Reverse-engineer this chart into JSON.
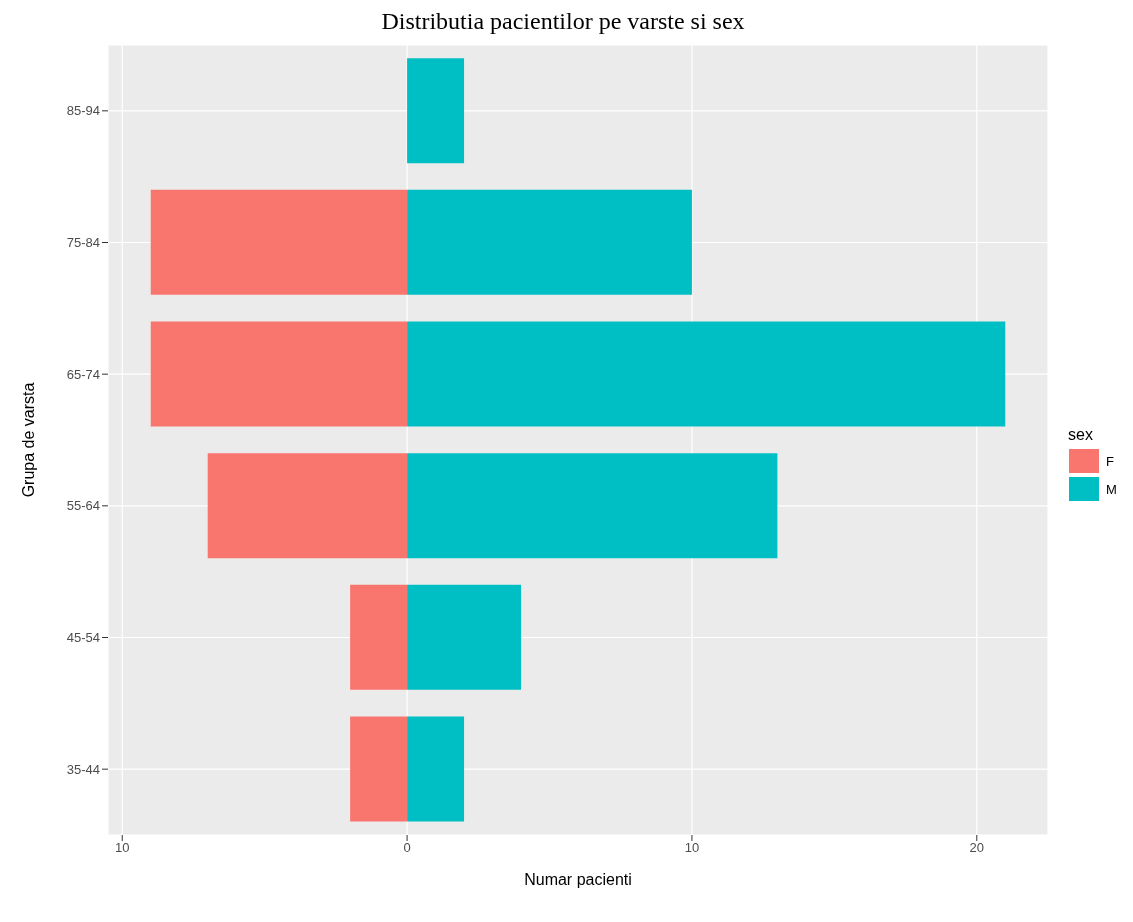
{
  "chart_data": {
    "type": "bar",
    "title": "Distributia pacientilor pe varste si sex",
    "xlabel": "Numar pacienti",
    "ylabel": "Grupa de varsta",
    "legend_title": "sex",
    "orientation": "horizontal",
    "stacked": true,
    "categories": [
      "85-94",
      "75-84",
      "65-74",
      "55-64",
      "45-54",
      "35-44"
    ],
    "series": [
      {
        "name": "F",
        "color": "#f8766d",
        "values": [
          0,
          -9,
          -9,
          -7,
          -2,
          -2
        ]
      },
      {
        "name": "M",
        "color": "#00bfc4",
        "values": [
          2,
          10,
          21,
          13,
          4,
          2
        ]
      }
    ],
    "xlim": [
      -10.5,
      22.5
    ],
    "xticks": [
      {
        "value": -10,
        "label": "10"
      },
      0,
      10,
      20
    ],
    "grid": true,
    "legend": "right"
  }
}
